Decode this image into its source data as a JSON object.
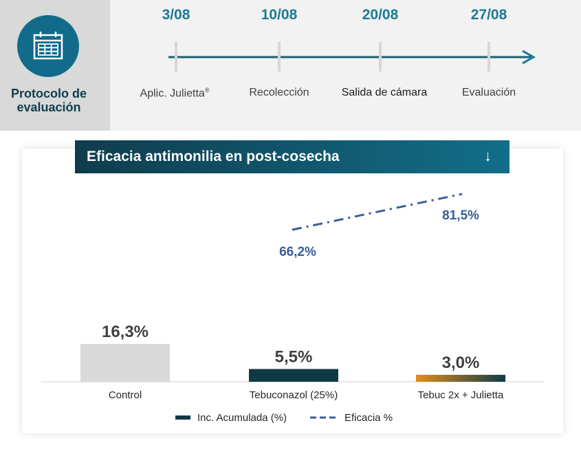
{
  "protocol": {
    "title_line1": "Protocolo de",
    "title_line2": "evaluación"
  },
  "timeline": [
    {
      "date": "3/08",
      "label": "Aplic. Julietta",
      "sup": "®"
    },
    {
      "date": "10/08",
      "label": "Recolección",
      "sup": ""
    },
    {
      "date": "20/08",
      "label": "Salida de cámara",
      "sup": ""
    },
    {
      "date": "27/08",
      "label": "Evaluación",
      "sup": ""
    }
  ],
  "colors": {
    "accent": "#1a7a95",
    "dark_teal": "#0f3e4a",
    "bar_control": "#d9d9d9",
    "bar_dark": "#0e3a46",
    "bar_gradient_start": "#e08e1b",
    "efficacy_line": "#3a5d9c"
  },
  "chart_data": {
    "type": "bar",
    "title": "Eficacia antimonilia en post-cosecha",
    "categories": [
      "Control",
      "Tebuconazol (25%)",
      "Tebuc 2x + Julietta"
    ],
    "series": [
      {
        "name": "Inc. Acumulada (%)",
        "type": "bar",
        "values": [
          16.3,
          5.5,
          3.0
        ],
        "labels": [
          "16,3%",
          "5,5%",
          "3,0%"
        ]
      },
      {
        "name": "Eficacia %",
        "type": "line",
        "style": "dash-dot",
        "values": [
          null,
          66.2,
          81.5
        ],
        "labels": [
          "",
          "66,2%",
          "81,5%"
        ]
      }
    ],
    "legend": {
      "position": "bottom",
      "items": [
        "Inc. Acumulada (%)",
        "Eficacia %"
      ]
    },
    "grid": false
  }
}
